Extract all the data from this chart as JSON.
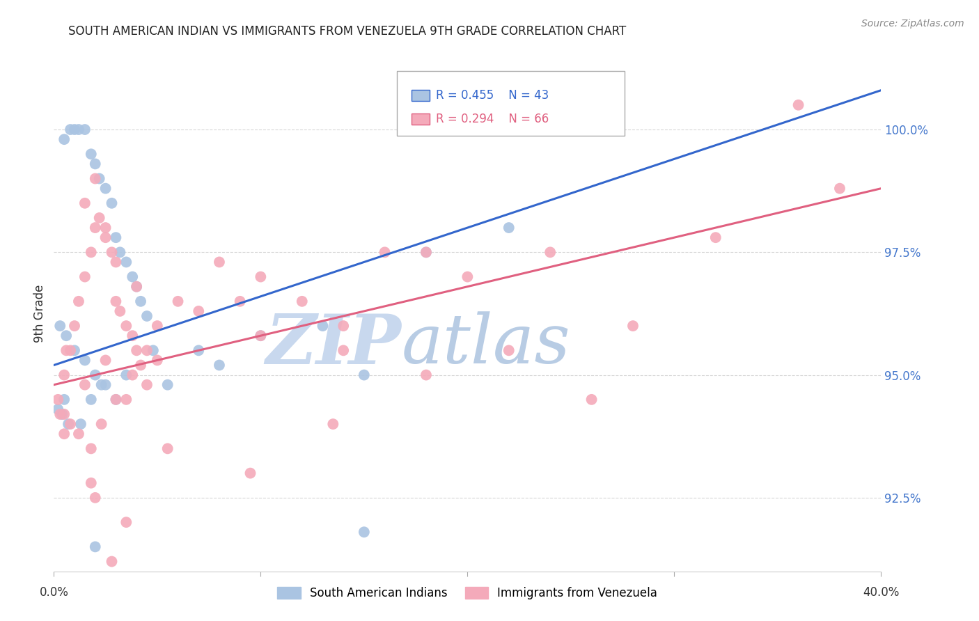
{
  "title": "SOUTH AMERICAN INDIAN VS IMMIGRANTS FROM VENEZUELA 9TH GRADE CORRELATION CHART",
  "source": "Source: ZipAtlas.com",
  "ylabel": "9th Grade",
  "yticks": [
    92.5,
    95.0,
    97.5,
    100.0
  ],
  "ytick_labels": [
    "92.5%",
    "95.0%",
    "97.5%",
    "100.0%"
  ],
  "xlim": [
    0.0,
    40.0
  ],
  "ylim": [
    91.0,
    101.5
  ],
  "legend_blue_r": "R = 0.455",
  "legend_blue_n": "N = 43",
  "legend_pink_r": "R = 0.294",
  "legend_pink_n": "N = 66",
  "blue_color": "#aac4e2",
  "pink_color": "#f4aaba",
  "blue_line_color": "#3366cc",
  "pink_line_color": "#e06080",
  "blue_label": "South American Indians",
  "pink_label": "Immigrants from Venezuela",
  "watermark_zip": "ZIP",
  "watermark_atlas": "atlas",
  "watermark_color_zip": "#c8d8ee",
  "watermark_color_atlas": "#b8cce4",
  "blue_x": [
    0.5,
    0.8,
    1.0,
    1.2,
    1.5,
    1.8,
    2.0,
    2.2,
    2.5,
    2.8,
    3.0,
    3.2,
    3.5,
    3.8,
    4.0,
    4.2,
    4.5,
    0.3,
    0.6,
    1.0,
    1.5,
    2.0,
    2.5,
    3.0,
    0.2,
    0.4,
    0.7,
    1.3,
    1.8,
    2.3,
    3.5,
    4.8,
    5.5,
    7.0,
    8.0,
    10.0,
    13.0,
    15.0,
    18.0,
    22.0,
    2.0,
    15.0,
    0.5
  ],
  "blue_y": [
    99.8,
    100.0,
    100.0,
    100.0,
    100.0,
    99.5,
    99.3,
    99.0,
    98.8,
    98.5,
    97.8,
    97.5,
    97.3,
    97.0,
    96.8,
    96.5,
    96.2,
    96.0,
    95.8,
    95.5,
    95.3,
    95.0,
    94.8,
    94.5,
    94.3,
    94.2,
    94.0,
    94.0,
    94.5,
    94.8,
    95.0,
    95.5,
    94.8,
    95.5,
    95.2,
    95.8,
    96.0,
    95.0,
    97.5,
    98.0,
    91.5,
    91.8,
    94.5
  ],
  "pink_x": [
    0.3,
    0.5,
    0.8,
    1.0,
    1.2,
    1.5,
    1.8,
    2.0,
    2.2,
    2.5,
    2.8,
    3.0,
    3.2,
    3.5,
    3.8,
    4.0,
    4.2,
    4.5,
    0.2,
    0.5,
    0.8,
    1.2,
    1.8,
    2.3,
    3.0,
    3.8,
    4.5,
    1.5,
    2.0,
    2.5,
    3.0,
    4.0,
    5.0,
    6.0,
    8.0,
    9.0,
    10.0,
    12.0,
    14.0,
    16.0,
    18.0,
    20.0,
    24.0,
    28.0,
    32.0,
    36.0,
    38.0,
    5.0,
    7.0,
    10.0,
    14.0,
    18.0,
    22.0,
    26.0,
    5.5,
    9.5,
    13.5,
    0.6,
    1.5,
    2.5,
    3.5,
    2.0,
    3.5,
    0.5,
    1.8,
    2.8
  ],
  "pink_y": [
    94.2,
    95.0,
    95.5,
    96.0,
    96.5,
    97.0,
    97.5,
    98.0,
    98.2,
    97.8,
    97.5,
    96.5,
    96.3,
    96.0,
    95.8,
    95.5,
    95.2,
    94.8,
    94.5,
    94.2,
    94.0,
    93.8,
    93.5,
    94.0,
    94.5,
    95.0,
    95.5,
    98.5,
    99.0,
    98.0,
    97.3,
    96.8,
    96.0,
    96.5,
    97.3,
    96.5,
    97.0,
    96.5,
    95.5,
    97.5,
    97.5,
    97.0,
    97.5,
    96.0,
    97.8,
    100.5,
    98.8,
    95.3,
    96.3,
    95.8,
    96.0,
    95.0,
    95.5,
    94.5,
    93.5,
    93.0,
    94.0,
    95.5,
    94.8,
    95.3,
    94.5,
    92.5,
    92.0,
    93.8,
    92.8,
    91.2
  ],
  "blue_line_x0": 0.0,
  "blue_line_y0": 95.2,
  "blue_line_x1": 40.0,
  "blue_line_y1": 100.8,
  "pink_line_x0": 0.0,
  "pink_line_y0": 94.8,
  "pink_line_x1": 40.0,
  "pink_line_y1": 98.8
}
